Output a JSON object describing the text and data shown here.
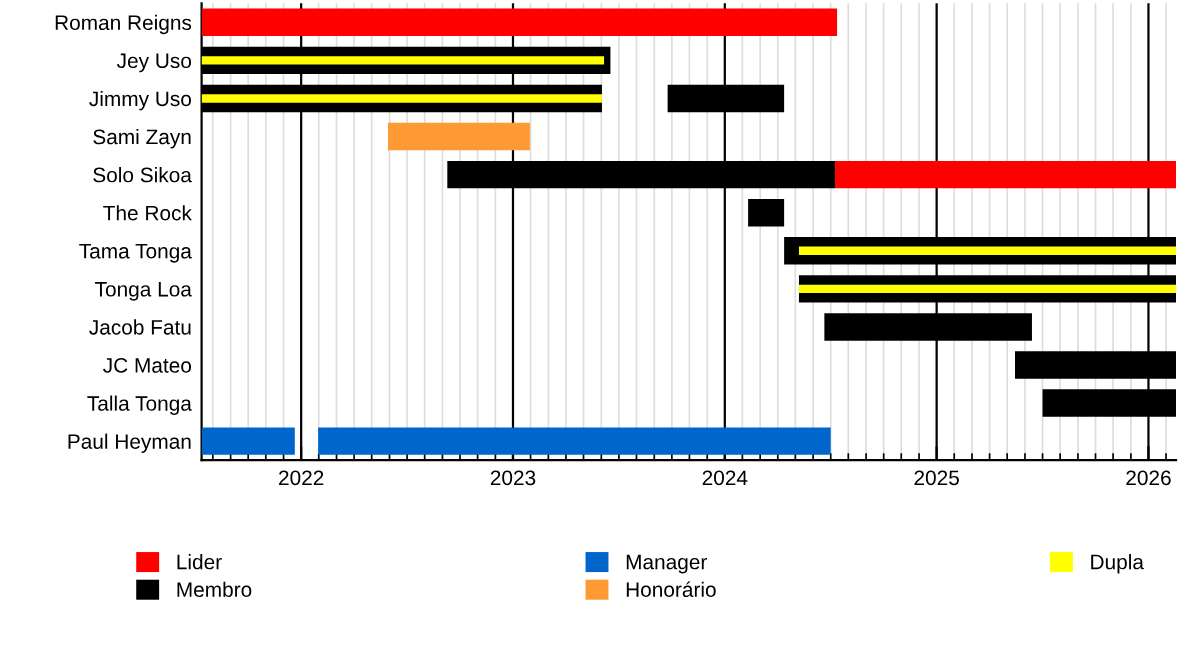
{
  "chart_data": {
    "type": "bar",
    "orientation": "horizontal",
    "legend": "bottom",
    "grid": "x",
    "categories": [
      "Roman Reigns",
      "Jey Uso",
      "Jimmy Uso",
      "Sami Zayn",
      "Solo Sikoa",
      "The Rock",
      "Tama Tonga",
      "Tonga Loa",
      "Jacob Fatu",
      "JC Mateo",
      "Talla Tonga",
      "Paul Heyman"
    ],
    "xlim": [
      2021.53,
      2026.13
    ],
    "xticks": [
      {
        "value": 2021.583,
        "label": null
      },
      {
        "value": 2021.667,
        "label": null
      },
      {
        "value": 2021.75,
        "label": null
      },
      {
        "value": 2021.833,
        "label": null
      },
      {
        "value": 2021.917,
        "label": null
      },
      2022,
      {
        "value": 2022.083,
        "label": null
      },
      {
        "value": 2022.167,
        "label": null
      },
      {
        "value": 2022.25,
        "label": null
      },
      {
        "value": 2022.333,
        "label": null
      },
      {
        "value": 2022.417,
        "label": null
      },
      {
        "value": 2022.5,
        "label": null
      },
      {
        "value": 2022.583,
        "label": null
      },
      {
        "value": 2022.667,
        "label": null
      },
      {
        "value": 2022.75,
        "label": null
      },
      {
        "value": 2022.833,
        "label": null
      },
      {
        "value": 2022.917,
        "label": null
      },
      2023,
      {
        "value": 2023.083,
        "label": null
      },
      {
        "value": 2023.167,
        "label": null
      },
      {
        "value": 2023.25,
        "label": null
      },
      {
        "value": 2023.333,
        "label": null
      },
      {
        "value": 2023.417,
        "label": null
      },
      {
        "value": 2023.5,
        "label": null
      },
      {
        "value": 2023.583,
        "label": null
      },
      {
        "value": 2023.667,
        "label": null
      },
      {
        "value": 2023.75,
        "label": null
      },
      {
        "value": 2023.833,
        "label": null
      },
      {
        "value": 2023.917,
        "label": null
      },
      2024,
      {
        "value": 2024.083,
        "label": null
      },
      {
        "value": 2024.167,
        "label": null
      },
      {
        "value": 2024.25,
        "label": null
      },
      {
        "value": 2024.333,
        "label": null
      },
      {
        "value": 2024.417,
        "label": null
      },
      {
        "value": 2024.5,
        "label": null
      },
      {
        "value": 2024.583,
        "label": null
      },
      {
        "value": 2024.667,
        "label": null
      },
      {
        "value": 2024.75,
        "label": null
      },
      {
        "value": 2024.833,
        "label": null
      },
      {
        "value": 2024.917,
        "label": null
      },
      2025,
      {
        "value": 2025.083,
        "label": null
      },
      {
        "value": 2025.167,
        "label": null
      },
      {
        "value": 2025.25,
        "label": null
      },
      {
        "value": 2025.333,
        "label": null
      },
      {
        "value": 2025.417,
        "label": null
      },
      {
        "value": 2025.5,
        "label": null
      },
      {
        "value": 2025.583,
        "label": null
      },
      {
        "value": 2025.667,
        "label": null
      },
      {
        "value": 2025.75,
        "label": null
      },
      {
        "value": 2025.833,
        "label": null
      },
      {
        "value": 2025.917,
        "label": null
      },
      2026,
      {
        "value": 2026.083,
        "label": null
      }
    ],
    "series": [
      {
        "name": "Lider",
        "color": "#ff0000",
        "base": [
          2021.53,
          null,
          null,
          null,
          2024.52,
          null,
          null,
          null,
          null,
          null,
          null,
          null
        ],
        "values": [
          3.0,
          null,
          null,
          null,
          1.61,
          null,
          null,
          null,
          null,
          null,
          null,
          null
        ]
      },
      {
        "name": "Membro",
        "color": "#000000",
        "base": [
          null,
          2021.53,
          2021.53,
          null,
          2022.69,
          2024.11,
          2024.28,
          2024.35,
          2024.47,
          2025.37,
          2025.5,
          null
        ],
        "values": [
          null,
          1.93,
          1.89,
          null,
          1.83,
          0.17,
          1.85,
          1.78,
          0.98,
          0.76,
          0.63,
          null
        ]
      },
      {
        "color": "#000000",
        "base": [
          null,
          null,
          2023.73,
          null,
          null,
          null,
          null,
          null,
          null,
          null,
          null,
          null
        ],
        "values": [
          null,
          null,
          0.55,
          null,
          null,
          null,
          null,
          null,
          null,
          null,
          null,
          null
        ]
      },
      {
        "name": "Manager",
        "color": "#0066cc",
        "base": [
          null,
          null,
          null,
          null,
          null,
          null,
          null,
          null,
          null,
          null,
          null,
          2021.53
        ],
        "values": [
          null,
          null,
          null,
          null,
          null,
          null,
          null,
          null,
          null,
          null,
          null,
          0.44
        ]
      },
      {
        "color": "#0066cc",
        "base": [
          null,
          null,
          null,
          null,
          null,
          null,
          null,
          null,
          null,
          null,
          null,
          2022.08
        ],
        "values": [
          null,
          null,
          null,
          null,
          null,
          null,
          null,
          null,
          null,
          null,
          null,
          2.42
        ]
      },
      {
        "name": "Honorário",
        "color": "#ff9933",
        "base": [
          null,
          null,
          null,
          2022.41,
          null,
          null,
          null,
          null,
          null,
          null,
          null,
          null
        ],
        "values": [
          null,
          null,
          null,
          0.67,
          null,
          null,
          null,
          null,
          null,
          null,
          null,
          null
        ]
      },
      {
        "name": "Dupla",
        "color": "#ffff00",
        "base": [
          null,
          2021.53,
          2021.53,
          null,
          null,
          null,
          2024.35,
          2024.35,
          null,
          null,
          null,
          null
        ],
        "values": [
          null,
          1.9,
          1.89,
          null,
          null,
          null,
          1.78,
          1.78,
          null,
          null,
          null,
          null
        ]
      }
    ]
  }
}
